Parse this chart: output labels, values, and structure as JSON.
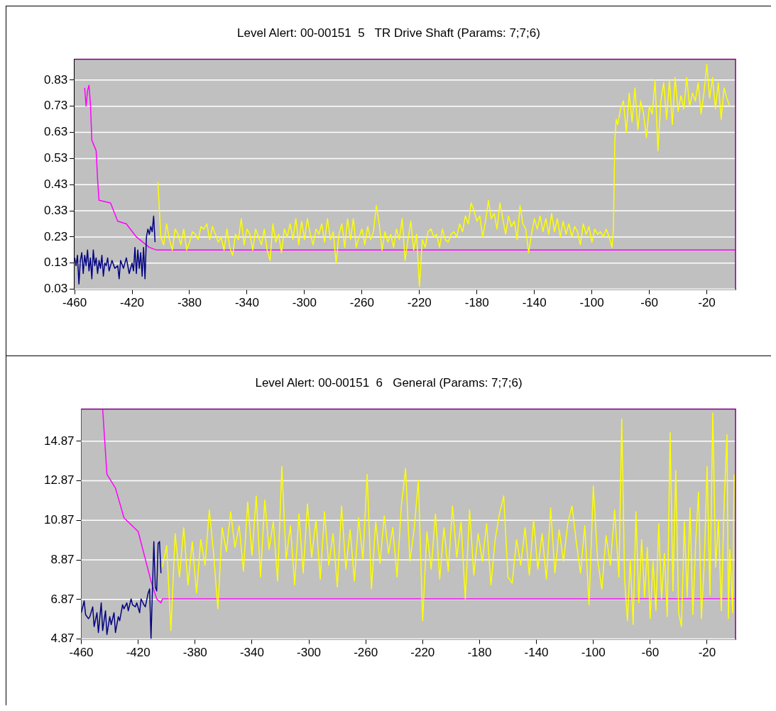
{
  "chart_data": [
    {
      "type": "line",
      "title": "Level Alert: 00-00151  5   TR Drive Shaft (Params: 7;7;6)",
      "xlim": [
        -460,
        0
      ],
      "ylim": [
        0.03,
        0.91
      ],
      "xticks": [
        -460,
        -420,
        -380,
        -340,
        -300,
        -260,
        -220,
        -180,
        -140,
        -100,
        -60,
        -20
      ],
      "yticks": [
        0.03,
        0.13,
        0.23,
        0.33,
        0.43,
        0.53,
        0.63,
        0.73,
        0.83
      ],
      "grid": "y",
      "marker": "none",
      "line_style": "solid",
      "series": [
        {
          "color": "#000080",
          "x": [
            -460,
            -459,
            -458,
            -457,
            -456,
            -455,
            -454,
            -453,
            -452,
            -451,
            -450,
            -449,
            -448,
            -447,
            -446,
            -445,
            -444,
            -443,
            -442,
            -441,
            -440,
            -439,
            -438,
            -437,
            -436,
            -434,
            -432,
            -430,
            -429,
            -428,
            -426,
            -424,
            -422,
            -420,
            -419,
            -418,
            -417,
            -416,
            -415,
            -414,
            -413,
            -412,
            -411,
            -410,
            -409,
            -408,
            -407,
            -406,
            -405,
            -404
          ],
          "values": [
            0.15,
            0.12,
            0.16,
            0.05,
            0.14,
            0.17,
            0.09,
            0.16,
            0.12,
            0.18,
            0.1,
            0.15,
            0.07,
            0.18,
            0.12,
            0.15,
            0.09,
            0.14,
            0.11,
            0.16,
            0.08,
            0.13,
            0.12,
            0.15,
            0.1,
            0.14,
            0.11,
            0.12,
            0.07,
            0.14,
            0.11,
            0.15,
            0.09,
            0.13,
            0.1,
            0.19,
            0.09,
            0.18,
            0.11,
            0.17,
            0.08,
            0.19,
            0.07,
            0.23,
            0.26,
            0.24,
            0.27,
            0.25,
            0.31,
            0.21
          ]
        },
        {
          "color": "#ffff00",
          "x": [
            -402,
            -400,
            -398,
            -396,
            -394,
            -392,
            -390,
            -388,
            -386,
            -384,
            -382,
            -380,
            -378,
            -376,
            -374,
            -372,
            -370,
            -368,
            -366,
            -364,
            -362,
            -360,
            -358,
            -356,
            -354,
            -352,
            -350,
            -348,
            -346,
            -344,
            -342,
            -340,
            -338,
            -336,
            -334,
            -332,
            -330,
            -328,
            -326,
            -324,
            -322,
            -320,
            -318,
            -316,
            -314,
            -312,
            -310,
            -308,
            -306,
            -304,
            -302,
            -300,
            -298,
            -296,
            -294,
            -292,
            -290,
            -288,
            -286,
            -284,
            -282,
            -280,
            -278,
            -276,
            -274,
            -272,
            -270,
            -268,
            -266,
            -264,
            -262,
            -260,
            -258,
            -256,
            -254,
            -252,
            -250,
            -248,
            -246,
            -244,
            -242,
            -240,
            -238,
            -236,
            -234,
            -232,
            -230,
            -228,
            -226,
            -224,
            -222,
            -220,
            -218,
            -216,
            -214,
            -212,
            -210,
            -208,
            -206,
            -204,
            -202,
            -200,
            -198,
            -196,
            -194,
            -192,
            -190,
            -188,
            -186,
            -184,
            -182,
            -180,
            -178,
            -176,
            -174,
            -172,
            -170,
            -168,
            -166,
            -164,
            -162,
            -160,
            -158,
            -156,
            -154,
            -152,
            -150,
            -148,
            -146,
            -144,
            -142,
            -140,
            -138,
            -136,
            -134,
            -132,
            -130,
            -128,
            -126,
            -124,
            -122,
            -120,
            -118,
            -116,
            -114,
            -112,
            -110,
            -108,
            -106,
            -104,
            -102,
            -100,
            -98,
            -96,
            -94,
            -92,
            -90,
            -88,
            -86,
            -85,
            -84,
            -83,
            -82,
            -80,
            -78,
            -76,
            -74,
            -72,
            -70,
            -68,
            -66,
            -64,
            -62,
            -60,
            -58,
            -56,
            -54,
            -52,
            -50,
            -48,
            -46,
            -44,
            -42,
            -40,
            -38,
            -36,
            -34,
            -32,
            -30,
            -28,
            -26,
            -24,
            -22,
            -20,
            -18,
            -16,
            -14,
            -12,
            -10,
            -8,
            -6,
            -4
          ],
          "values": [
            0.44,
            0.23,
            0.2,
            0.28,
            0.22,
            0.18,
            0.26,
            0.24,
            0.2,
            0.26,
            0.18,
            0.21,
            0.25,
            0.24,
            0.22,
            0.27,
            0.26,
            0.28,
            0.22,
            0.27,
            0.24,
            0.21,
            0.23,
            0.18,
            0.26,
            0.19,
            0.16,
            0.24,
            0.22,
            0.3,
            0.2,
            0.26,
            0.24,
            0.18,
            0.26,
            0.23,
            0.2,
            0.26,
            0.18,
            0.14,
            0.28,
            0.21,
            0.24,
            0.17,
            0.26,
            0.23,
            0.28,
            0.22,
            0.3,
            0.2,
            0.29,
            0.22,
            0.3,
            0.24,
            0.2,
            0.26,
            0.24,
            0.28,
            0.21,
            0.3,
            0.22,
            0.25,
            0.13,
            0.24,
            0.28,
            0.19,
            0.3,
            0.22,
            0.3,
            0.19,
            0.23,
            0.26,
            0.2,
            0.27,
            0.22,
            0.25,
            0.35,
            0.28,
            0.18,
            0.25,
            0.21,
            0.24,
            0.19,
            0.26,
            0.22,
            0.3,
            0.14,
            0.22,
            0.29,
            0.18,
            0.24,
            0.04,
            0.22,
            0.19,
            0.25,
            0.26,
            0.23,
            0.24,
            0.19,
            0.26,
            0.22,
            0.21,
            0.24,
            0.25,
            0.23,
            0.28,
            0.25,
            0.31,
            0.28,
            0.36,
            0.33,
            0.29,
            0.31,
            0.23,
            0.29,
            0.37,
            0.3,
            0.32,
            0.26,
            0.36,
            0.3,
            0.24,
            0.31,
            0.27,
            0.29,
            0.22,
            0.35,
            0.28,
            0.26,
            0.17,
            0.24,
            0.3,
            0.26,
            0.31,
            0.25,
            0.3,
            0.24,
            0.32,
            0.25,
            0.3,
            0.23,
            0.29,
            0.24,
            0.28,
            0.23,
            0.27,
            0.25,
            0.2,
            0.28,
            0.24,
            0.27,
            0.21,
            0.26,
            0.24,
            0.25,
            0.23,
            0.26,
            0.23,
            0.19,
            0.26,
            0.6,
            0.68,
            0.66,
            0.72,
            0.75,
            0.63,
            0.78,
            0.67,
            0.8,
            0.64,
            0.75,
            0.7,
            0.61,
            0.73,
            0.7,
            0.83,
            0.56,
            0.75,
            0.82,
            0.68,
            0.83,
            0.66,
            0.84,
            0.71,
            0.77,
            0.72,
            0.84,
            0.73,
            0.78,
            0.75,
            0.82,
            0.7,
            0.78,
            0.89,
            0.76,
            0.84,
            0.72,
            0.82,
            0.68,
            0.8,
            0.76,
            0.73
          ]
        },
        {
          "color": "#ff00ff",
          "x": [
            -453,
            -452,
            -451,
            -450,
            -449,
            -448,
            -445,
            -444,
            -443,
            -435,
            -430,
            -424,
            -417,
            -408,
            -403,
            0
          ],
          "values": [
            0.8,
            0.73,
            0.79,
            0.81,
            0.74,
            0.6,
            0.56,
            0.45,
            0.37,
            0.36,
            0.29,
            0.28,
            0.23,
            0.19,
            0.18,
            0.18
          ]
        }
      ]
    },
    {
      "type": "line",
      "title": "Level Alert: 00-00151  6   General (Params: 7;7;6)",
      "xlim": [
        -460,
        0
      ],
      "ylim": [
        4.87,
        16.5
      ],
      "xticks": [
        -460,
        -420,
        -380,
        -340,
        -300,
        -260,
        -220,
        -180,
        -140,
        -100,
        -60,
        -20
      ],
      "yticks": [
        4.87,
        6.87,
        8.87,
        10.87,
        12.87,
        14.87
      ],
      "grid": "y",
      "marker": "none",
      "line_style": "solid",
      "series": [
        {
          "color": "#000080",
          "x": [
            -460,
            -458,
            -457,
            -455,
            -454,
            -452,
            -451,
            -449,
            -448,
            -446,
            -445,
            -443,
            -442,
            -440,
            -439,
            -437,
            -436,
            -434,
            -433,
            -431,
            -430,
            -428,
            -427,
            -425,
            -424,
            -422,
            -421,
            -419,
            -418,
            -416,
            -415,
            -413,
            -412,
            -411,
            -409,
            -408,
            -407,
            -406,
            -405,
            -404
          ],
          "values": [
            6.2,
            6.8,
            6.1,
            5.9,
            6.0,
            6.5,
            5.5,
            6.2,
            5.2,
            6.7,
            5.3,
            6.3,
            5.1,
            6.0,
            5.6,
            6.2,
            5.2,
            6.0,
            5.8,
            6.6,
            6.4,
            6.7,
            6.3,
            6.9,
            6.6,
            6.5,
            6.7,
            6.2,
            6.9,
            6.6,
            6.5,
            7.2,
            7.4,
            4.9,
            9.8,
            7.5,
            7.3,
            9.7,
            9.8,
            8.2
          ]
        },
        {
          "color": "#ffff00",
          "x": [
            -403,
            -400,
            -397,
            -394,
            -391,
            -388,
            -385,
            -382,
            -379,
            -376,
            -373,
            -370,
            -367,
            -364,
            -361,
            -358,
            -355,
            -352,
            -349,
            -346,
            -343,
            -340,
            -337,
            -334,
            -331,
            -328,
            -325,
            -322,
            -319,
            -316,
            -313,
            -310,
            -307,
            -304,
            -301,
            -298,
            -295,
            -292,
            -289,
            -286,
            -283,
            -280,
            -277,
            -274,
            -271,
            -268,
            -265,
            -262,
            -259,
            -256,
            -253,
            -250,
            -247,
            -244,
            -241,
            -238,
            -235,
            -232,
            -229,
            -226,
            -223,
            -220,
            -217,
            -214,
            -211,
            -208,
            -205,
            -202,
            -199,
            -196,
            -193,
            -190,
            -187,
            -184,
            -181,
            -178,
            -175,
            -172,
            -169,
            -166,
            -163,
            -160,
            -157,
            -154,
            -151,
            -148,
            -145,
            -142,
            -139,
            -136,
            -133,
            -130,
            -127,
            -124,
            -121,
            -118,
            -115,
            -112,
            -109,
            -106,
            -103,
            -100,
            -97,
            -94,
            -91,
            -88,
            -85,
            -82,
            -80,
            -78,
            -76,
            -74,
            -72,
            -70,
            -68,
            -66,
            -64,
            -62,
            -60,
            -58,
            -56,
            -54,
            -52,
            -50,
            -48,
            -46,
            -44,
            -42,
            -40,
            -38,
            -36,
            -34,
            -32,
            -30,
            -28,
            -26,
            -24,
            -22,
            -20,
            -18,
            -16,
            -14,
            -12,
            -10,
            -8,
            -6,
            -5,
            -4,
            -2,
            -1
          ],
          "values": [
            8.5,
            9.6,
            5.3,
            10.2,
            8.0,
            10.5,
            7.6,
            9.8,
            7.2,
            9.9,
            8.6,
            11.4,
            9.2,
            6.4,
            10.5,
            9.3,
            11.3,
            9.5,
            10.6,
            8.3,
            11.8,
            9.1,
            12.1,
            8.0,
            11.9,
            9.4,
            10.8,
            7.8,
            13.6,
            8.9,
            10.6,
            7.6,
            11.2,
            8.2,
            11.7,
            9.0,
            10.9,
            7.9,
            11.3,
            8.6,
            10.2,
            7.5,
            11.6,
            8.4,
            10.4,
            7.8,
            11.0,
            8.9,
            13.2,
            7.4,
            10.8,
            8.7,
            11.1,
            9.2,
            10.5,
            8.0,
            11.6,
            13.5,
            8.8,
            10.4,
            12.9,
            5.8,
            10.3,
            8.4,
            11.2,
            7.9,
            10.5,
            8.3,
            11.6,
            9.0,
            10.8,
            6.9,
            11.4,
            8.1,
            10.2,
            8.8,
            10.7,
            7.6,
            9.9,
            11.2,
            12.1,
            8.0,
            7.7,
            9.9,
            8.6,
            10.5,
            8.1,
            10.9,
            8.4,
            10.2,
            7.9,
            11.5,
            8.2,
            10.4,
            8.8,
            10.7,
            11.6,
            9.8,
            8.2,
            10.6,
            6.6,
            12.6,
            8.9,
            7.4,
            10.1,
            8.6,
            11.4,
            8.0,
            16.0,
            7.9,
            5.8,
            8.9,
            5.6,
            11.3,
            6.7,
            9.9,
            7.0,
            9.5,
            5.9,
            8.8,
            6.3,
            10.7,
            6.9,
            9.2,
            6.0,
            15.3,
            7.3,
            13.4,
            6.2,
            5.5,
            10.8,
            7.0,
            11.5,
            6.1,
            9.8,
            12.3,
            5.9,
            8.7,
            13.6,
            7.1,
            16.3,
            8.5,
            10.9,
            6.3,
            11.8,
            15.2,
            5.9,
            9.4,
            6.2,
            13.2
          ]
        },
        {
          "color": "#ff00ff",
          "x": [
            -445,
            -442,
            -436,
            -430,
            -420,
            -411,
            -407,
            -404,
            -403,
            0
          ],
          "values": [
            16.5,
            13.2,
            12.5,
            11.0,
            10.3,
            7.8,
            6.9,
            6.7,
            6.9,
            6.9
          ]
        }
      ]
    }
  ]
}
